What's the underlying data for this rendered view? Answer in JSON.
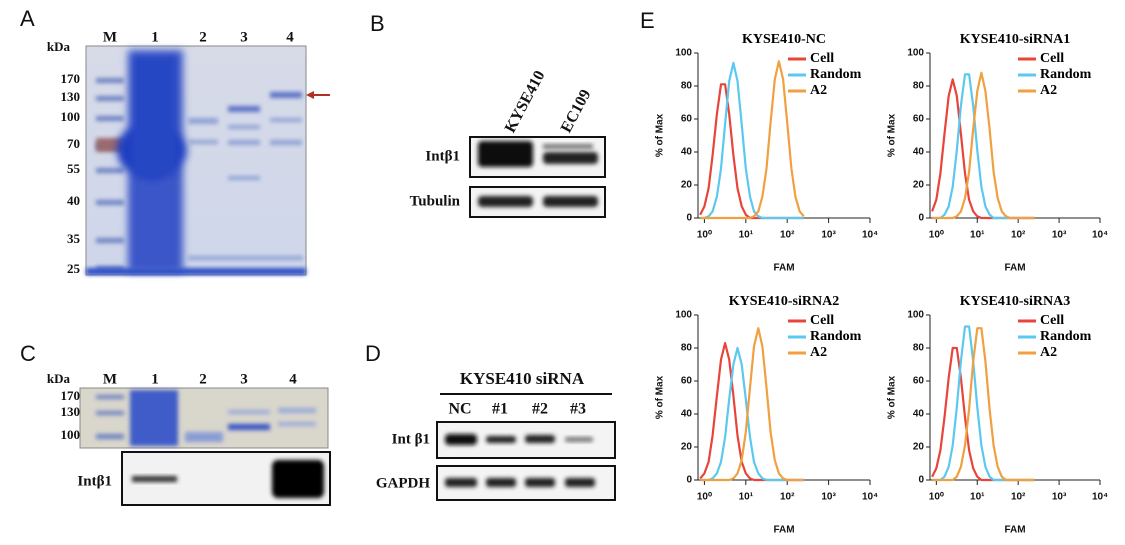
{
  "panels": {
    "A": {
      "label": "A",
      "unit": "kDa",
      "lanes": [
        "M",
        "1",
        "2",
        "3",
        "4"
      ],
      "markers": [
        "170",
        "130",
        "100",
        "70",
        "55",
        "40",
        "35",
        "25"
      ]
    },
    "B": {
      "label": "B",
      "cell_lines": [
        "KYSE410",
        "EC109"
      ],
      "rows": [
        "Intβ1",
        "Tubulin"
      ]
    },
    "C": {
      "label": "C",
      "unit": "kDa",
      "lanes": [
        "M",
        "1",
        "2",
        "3",
        "4"
      ],
      "markers": [
        "170",
        "130",
        "100"
      ],
      "rows": [
        "Intβ1"
      ]
    },
    "D": {
      "label": "D",
      "title": "KYSE410 siRNA",
      "lanes": [
        "NC",
        "#1",
        "#2",
        "#3"
      ],
      "rows": [
        "Int β1",
        "GAPDH"
      ]
    },
    "E": {
      "label": "E"
    }
  },
  "chart_data": [
    {
      "type": "line",
      "title": "KYSE410-NC",
      "xlabel": "FAM",
      "ylabel": "% of Max",
      "log_x": true,
      "legend": "upper right",
      "x": [
        0.79,
        1,
        1.26,
        1.58,
        2,
        2.51,
        3.16,
        3.98,
        5.01,
        6.31,
        7.94,
        10,
        12.6,
        15.8,
        20,
        25.1,
        31.6,
        39.8,
        50.1,
        63.1,
        79.4,
        100,
        126,
        158,
        200,
        251
      ],
      "xlim": [
        0.7,
        10000
      ],
      "ylim": [
        0,
        100
      ],
      "xticks": [
        {
          "value": 1,
          "label": "10⁰"
        },
        {
          "value": 10,
          "label": "10¹"
        },
        {
          "value": 100,
          "label": "10²"
        },
        {
          "value": 1000,
          "label": "10³"
        },
        {
          "value": 10000,
          "label": "10⁴"
        }
      ],
      "yticks": [
        0,
        20,
        40,
        60,
        80,
        100
      ],
      "series": [
        {
          "name": "Cell",
          "color": "#e8443a",
          "values": [
            2,
            7,
            18,
            38,
            63,
            81,
            81,
            63,
            38,
            18,
            7,
            2,
            0,
            0,
            0,
            0,
            0,
            0,
            0,
            0,
            0,
            0,
            0,
            0,
            0,
            0
          ]
        },
        {
          "name": "Random",
          "color": "#5bc8f0",
          "values": [
            0,
            0,
            1,
            4,
            13,
            30,
            57,
            83,
            94,
            83,
            57,
            30,
            13,
            4,
            1,
            0,
            0,
            0,
            0,
            0,
            0,
            0,
            0,
            0,
            0,
            0
          ]
        },
        {
          "name": "A2",
          "color": "#f0a040",
          "values": [
            0,
            0,
            0,
            0,
            0,
            0,
            0,
            0,
            0,
            0,
            0,
            0,
            0,
            1,
            4,
            13,
            30,
            58,
            84,
            95,
            84,
            58,
            30,
            13,
            4,
            1
          ]
        }
      ]
    },
    {
      "type": "line",
      "title": "KYSE410-siRNA1",
      "xlabel": "FAM",
      "ylabel": "% of Max",
      "log_x": true,
      "legend": "upper right",
      "x": [
        0.79,
        1,
        1.26,
        1.58,
        2,
        2.51,
        3.16,
        3.98,
        5.01,
        6.31,
        7.94,
        10,
        12.6,
        15.8,
        20,
        25.1,
        31.6,
        39.8,
        50.1,
        63.1,
        79.4,
        100,
        126,
        158,
        200,
        251
      ],
      "xlim": [
        0.7,
        10000
      ],
      "ylim": [
        0,
        100
      ],
      "xticks": [
        {
          "value": 1,
          "label": "10⁰"
        },
        {
          "value": 10,
          "label": "10¹"
        },
        {
          "value": 100,
          "label": "10²"
        },
        {
          "value": 1000,
          "label": "10³"
        },
        {
          "value": 10000,
          "label": "10⁴"
        }
      ],
      "yticks": [
        0,
        20,
        40,
        60,
        80,
        100
      ],
      "series": [
        {
          "name": "Cell",
          "color": "#e8443a",
          "values": [
            4,
            11,
            27,
            51,
            74,
            84,
            74,
            51,
            27,
            11,
            4,
            1,
            0,
            0,
            0,
            0,
            0,
            0,
            0,
            0,
            0,
            0,
            0,
            0,
            0,
            0
          ]
        },
        {
          "name": "Random",
          "color": "#5bc8f0",
          "values": [
            0,
            0,
            0,
            2,
            7,
            19,
            41,
            68,
            87,
            87,
            68,
            41,
            19,
            7,
            2,
            0,
            0,
            0,
            0,
            0,
            0,
            0,
            0,
            0,
            0,
            0
          ]
        },
        {
          "name": "A2",
          "color": "#f0a040",
          "values": [
            0,
            0,
            0,
            0,
            0,
            0,
            1,
            4,
            12,
            28,
            54,
            77,
            88,
            77,
            54,
            28,
            12,
            4,
            1,
            0,
            0,
            0,
            0,
            0,
            0,
            0
          ]
        }
      ]
    },
    {
      "type": "line",
      "title": "KYSE410-siRNA2",
      "xlabel": "FAM",
      "ylabel": "% of Max",
      "log_x": true,
      "legend": "upper right",
      "x": [
        0.79,
        1,
        1.26,
        1.58,
        2,
        2.51,
        3.16,
        3.98,
        5.01,
        6.31,
        7.94,
        10,
        12.6,
        15.8,
        20,
        25.1,
        31.6,
        39.8,
        50.1,
        63.1,
        79.4,
        100,
        126,
        158,
        200,
        251
      ],
      "xlim": [
        0.7,
        10000
      ],
      "ylim": [
        0,
        100
      ],
      "xticks": [
        {
          "value": 1,
          "label": "10⁰"
        },
        {
          "value": 10,
          "label": "10¹"
        },
        {
          "value": 100,
          "label": "10²"
        },
        {
          "value": 1000,
          "label": "10³"
        },
        {
          "value": 10000,
          "label": "10⁴"
        }
      ],
      "yticks": [
        0,
        20,
        40,
        60,
        80,
        100
      ],
      "series": [
        {
          "name": "Cell",
          "color": "#e8443a",
          "values": [
            1,
            4,
            11,
            27,
            51,
            73,
            83,
            73,
            51,
            27,
            11,
            4,
            1,
            0,
            0,
            0,
            0,
            0,
            0,
            0,
            0,
            0,
            0,
            0,
            0,
            0
          ]
        },
        {
          "name": "Random",
          "color": "#5bc8f0",
          "values": [
            0,
            0,
            0,
            1,
            4,
            11,
            26,
            49,
            70,
            80,
            70,
            49,
            26,
            11,
            4,
            1,
            0,
            0,
            0,
            0,
            0,
            0,
            0,
            0,
            0,
            0
          ]
        },
        {
          "name": "A2",
          "color": "#f0a040",
          "values": [
            0,
            0,
            0,
            0,
            0,
            0,
            0,
            0,
            1,
            4,
            12,
            29,
            56,
            81,
            92,
            81,
            56,
            29,
            12,
            4,
            1,
            0,
            0,
            0,
            0,
            0
          ]
        }
      ]
    },
    {
      "type": "line",
      "title": "KYSE410-siRNA3",
      "xlabel": "FAM",
      "ylabel": "% of Max",
      "log_x": true,
      "legend": "upper right",
      "x": [
        0.79,
        1,
        1.26,
        1.58,
        2,
        2.51,
        3.16,
        3.98,
        5.01,
        6.31,
        7.94,
        10,
        12.6,
        15.8,
        20,
        25.1,
        31.6,
        39.8,
        50.1,
        63.1,
        79.4,
        100,
        126,
        158,
        200,
        251
      ],
      "xlim": [
        0.7,
        10000
      ],
      "ylim": [
        0,
        100
      ],
      "xticks": [
        {
          "value": 1,
          "label": "10⁰"
        },
        {
          "value": 10,
          "label": "10¹"
        },
        {
          "value": 100,
          "label": "10²"
        },
        {
          "value": 1000,
          "label": "10³"
        },
        {
          "value": 10000,
          "label": "10⁴"
        }
      ],
      "yticks": [
        0,
        20,
        40,
        60,
        80,
        100
      ],
      "series": [
        {
          "name": "Cell",
          "color": "#e8443a",
          "values": [
            2,
            7,
            18,
            38,
            62,
            80,
            80,
            62,
            38,
            18,
            7,
            2,
            0,
            0,
            0,
            0,
            0,
            0,
            0,
            0,
            0,
            0,
            0,
            0,
            0,
            0
          ]
        },
        {
          "name": "Random",
          "color": "#5bc8f0",
          "values": [
            0,
            0,
            0,
            2,
            8,
            21,
            44,
            72,
            93,
            93,
            72,
            44,
            21,
            8,
            2,
            0,
            0,
            0,
            0,
            0,
            0,
            0,
            0,
            0,
            0,
            0
          ]
        },
        {
          "name": "A2",
          "color": "#f0a040",
          "values": [
            0,
            0,
            0,
            0,
            0,
            0,
            2,
            8,
            21,
            43,
            72,
            92,
            92,
            72,
            43,
            21,
            8,
            2,
            0,
            0,
            0,
            0,
            0,
            0,
            0,
            0
          ]
        }
      ]
    }
  ]
}
